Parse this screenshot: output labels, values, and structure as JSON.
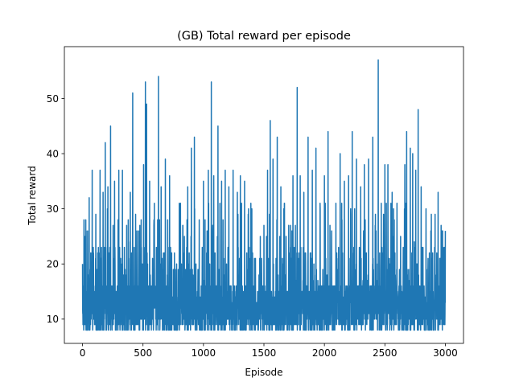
{
  "chart_data": {
    "type": "line",
    "title": "(GB) Total reward per episode",
    "xlabel": "Episode",
    "ylabel": "Total reward",
    "xlim": [
      -150,
      3150
    ],
    "ylim": [
      5.6,
      59.4
    ],
    "x_ticks": [
      0,
      500,
      1000,
      1500,
      2000,
      2500,
      3000
    ],
    "y_ticks": [
      10,
      20,
      30,
      40,
      50
    ],
    "grid": false,
    "legend": "none",
    "color": "#1f77b4",
    "series": [
      {
        "x_start": 0,
        "x_step": 1,
        "count": 3001,
        "baseline_range": [
          8,
          20
        ],
        "peaks": [
          {
            "x": 0,
            "y": 20
          },
          {
            "x": 12,
            "y": 28
          },
          {
            "x": 30,
            "y": 26
          },
          {
            "x": 55,
            "y": 32
          },
          {
            "x": 80,
            "y": 37
          },
          {
            "x": 110,
            "y": 29
          },
          {
            "x": 145,
            "y": 37
          },
          {
            "x": 170,
            "y": 33
          },
          {
            "x": 188,
            "y": 42
          },
          {
            "x": 210,
            "y": 34
          },
          {
            "x": 232,
            "y": 45
          },
          {
            "x": 265,
            "y": 35
          },
          {
            "x": 300,
            "y": 37
          },
          {
            "x": 330,
            "y": 37
          },
          {
            "x": 365,
            "y": 27
          },
          {
            "x": 395,
            "y": 33
          },
          {
            "x": 415,
            "y": 51
          },
          {
            "x": 450,
            "y": 26
          },
          {
            "x": 485,
            "y": 28
          },
          {
            "x": 505,
            "y": 38
          },
          {
            "x": 520,
            "y": 53
          },
          {
            "x": 530,
            "y": 49
          },
          {
            "x": 555,
            "y": 35
          },
          {
            "x": 590,
            "y": 27
          },
          {
            "x": 628,
            "y": 54
          },
          {
            "x": 650,
            "y": 34
          },
          {
            "x": 685,
            "y": 39
          },
          {
            "x": 720,
            "y": 36
          },
          {
            "x": 760,
            "y": 22
          },
          {
            "x": 800,
            "y": 31
          },
          {
            "x": 830,
            "y": 27
          },
          {
            "x": 870,
            "y": 34
          },
          {
            "x": 900,
            "y": 41
          },
          {
            "x": 925,
            "y": 43
          },
          {
            "x": 965,
            "y": 28
          },
          {
            "x": 1000,
            "y": 35
          },
          {
            "x": 1040,
            "y": 37
          },
          {
            "x": 1065,
            "y": 53
          },
          {
            "x": 1085,
            "y": 36
          },
          {
            "x": 1120,
            "y": 45
          },
          {
            "x": 1150,
            "y": 35
          },
          {
            "x": 1180,
            "y": 37
          },
          {
            "x": 1210,
            "y": 34
          },
          {
            "x": 1245,
            "y": 37
          },
          {
            "x": 1280,
            "y": 33
          },
          {
            "x": 1305,
            "y": 36
          },
          {
            "x": 1340,
            "y": 35
          },
          {
            "x": 1370,
            "y": 29
          },
          {
            "x": 1400,
            "y": 30
          },
          {
            "x": 1430,
            "y": 21
          },
          {
            "x": 1470,
            "y": 25
          },
          {
            "x": 1500,
            "y": 27
          },
          {
            "x": 1530,
            "y": 37
          },
          {
            "x": 1552,
            "y": 46
          },
          {
            "x": 1575,
            "y": 39
          },
          {
            "x": 1610,
            "y": 43
          },
          {
            "x": 1640,
            "y": 34
          },
          {
            "x": 1670,
            "y": 31
          },
          {
            "x": 1705,
            "y": 27
          },
          {
            "x": 1740,
            "y": 36
          },
          {
            "x": 1775,
            "y": 52
          },
          {
            "x": 1800,
            "y": 36
          },
          {
            "x": 1830,
            "y": 33
          },
          {
            "x": 1865,
            "y": 43
          },
          {
            "x": 1900,
            "y": 37
          },
          {
            "x": 1930,
            "y": 41
          },
          {
            "x": 1965,
            "y": 30
          },
          {
            "x": 2000,
            "y": 36
          },
          {
            "x": 2030,
            "y": 44
          },
          {
            "x": 2060,
            "y": 26
          },
          {
            "x": 2095,
            "y": 31
          },
          {
            "x": 2130,
            "y": 40
          },
          {
            "x": 2165,
            "y": 35
          },
          {
            "x": 2200,
            "y": 36
          },
          {
            "x": 2230,
            "y": 44
          },
          {
            "x": 2265,
            "y": 39
          },
          {
            "x": 2300,
            "y": 34
          },
          {
            "x": 2330,
            "y": 38
          },
          {
            "x": 2365,
            "y": 39
          },
          {
            "x": 2400,
            "y": 43
          },
          {
            "x": 2445,
            "y": 57
          },
          {
            "x": 2470,
            "y": 31
          },
          {
            "x": 2500,
            "y": 38
          },
          {
            "x": 2525,
            "y": 38
          },
          {
            "x": 2560,
            "y": 33
          },
          {
            "x": 2600,
            "y": 31
          },
          {
            "x": 2630,
            "y": 25
          },
          {
            "x": 2665,
            "y": 38
          },
          {
            "x": 2680,
            "y": 44
          },
          {
            "x": 2710,
            "y": 41
          },
          {
            "x": 2730,
            "y": 40
          },
          {
            "x": 2755,
            "y": 37
          },
          {
            "x": 2775,
            "y": 48
          },
          {
            "x": 2800,
            "y": 34
          },
          {
            "x": 2840,
            "y": 30
          },
          {
            "x": 2880,
            "y": 26
          },
          {
            "x": 2915,
            "y": 29
          },
          {
            "x": 2940,
            "y": 33
          },
          {
            "x": 2965,
            "y": 27
          },
          {
            "x": 2990,
            "y": 23
          },
          {
            "x": 3000,
            "y": 26
          }
        ]
      }
    ]
  }
}
